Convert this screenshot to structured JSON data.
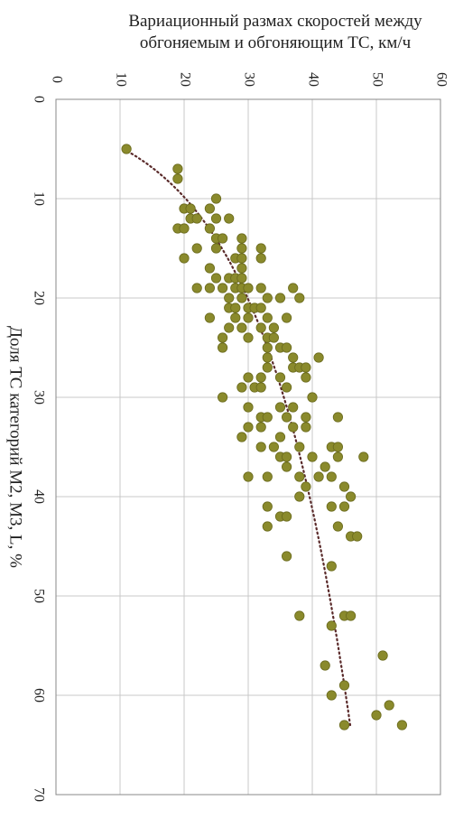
{
  "chart_data": {
    "type": "scatter",
    "y_label": "Вариационный размах скоростей между обгоняемым и обгоняющим ТС, км/ч",
    "x_label": "Доля ТС категорий М2, М3, L, %",
    "xlim": [
      0,
      70
    ],
    "xticks": [
      0,
      10,
      20,
      30,
      40,
      50,
      60,
      70
    ],
    "ylim": [
      0,
      60
    ],
    "yticks": [
      0,
      10,
      20,
      30,
      40,
      50,
      60
    ],
    "grid": true,
    "color": "#8a8a2c",
    "trendline": "logarithmic",
    "trendline_color": "#5a2a2a",
    "x": [
      5,
      7,
      8,
      10,
      11,
      11,
      11,
      12,
      12,
      12,
      12,
      13,
      13,
      13,
      14,
      14,
      14,
      15,
      15,
      15,
      15,
      16,
      16,
      16,
      16,
      17,
      17,
      18,
      18,
      18,
      18,
      19,
      19,
      19,
      19,
      19,
      19,
      19,
      19,
      20,
      20,
      20,
      20,
      20,
      21,
      21,
      21,
      21,
      21,
      22,
      22,
      22,
      22,
      22,
      23,
      23,
      23,
      23,
      24,
      24,
      24,
      24,
      25,
      25,
      25,
      25,
      26,
      26,
      26,
      27,
      27,
      27,
      27,
      28,
      28,
      28,
      28,
      29,
      29,
      29,
      29,
      30,
      30,
      31,
      31,
      31,
      32,
      32,
      32,
      32,
      32,
      33,
      33,
      33,
      33,
      34,
      34,
      35,
      35,
      35,
      35,
      35,
      36,
      36,
      36,
      36,
      36,
      37,
      37,
      38,
      38,
      38,
      38,
      38,
      39,
      39,
      40,
      40,
      41,
      41,
      41,
      42,
      42,
      43,
      43,
      44,
      44,
      46,
      47,
      52,
      52,
      52,
      53,
      56,
      57,
      59,
      60,
      61,
      62,
      63,
      63
    ],
    "values": [
      11,
      19,
      19,
      25,
      20,
      21,
      24,
      21,
      22,
      25,
      27,
      19,
      20,
      24,
      25,
      26,
      29,
      22,
      25,
      29,
      32,
      20,
      28,
      29,
      32,
      24,
      29,
      25,
      27,
      28,
      29,
      22,
      24,
      26,
      28,
      29,
      30,
      32,
      37,
      27,
      29,
      33,
      35,
      38,
      27,
      28,
      30,
      31,
      32,
      24,
      28,
      30,
      33,
      36,
      27,
      29,
      32,
      34,
      26,
      30,
      33,
      34,
      26,
      33,
      35,
      36,
      33,
      37,
      41,
      33,
      37,
      38,
      39,
      30,
      32,
      35,
      39,
      29,
      31,
      32,
      36,
      26,
      40,
      30,
      35,
      37,
      32,
      33,
      36,
      39,
      44,
      30,
      32,
      37,
      39,
      29,
      35,
      32,
      34,
      38,
      43,
      44,
      35,
      36,
      40,
      44,
      48,
      36,
      42,
      30,
      33,
      38,
      41,
      43,
      39,
      45,
      38,
      46,
      33,
      43,
      45,
      35,
      36,
      33,
      44,
      46,
      47,
      36,
      43,
      38,
      45,
      46,
      43,
      51,
      42,
      45,
      43,
      52,
      50,
      45,
      54
    ]
  }
}
